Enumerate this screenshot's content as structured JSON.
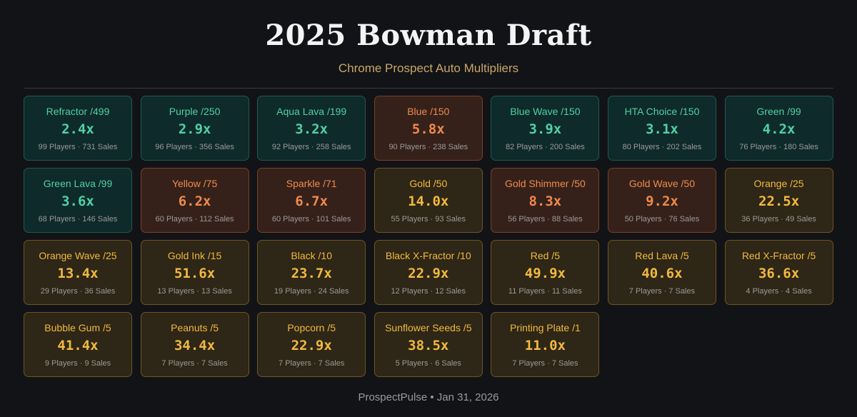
{
  "header": {
    "title": "2025 Bowman Draft",
    "subtitle": "Chrome Prospect Auto Multipliers"
  },
  "cards": [
    {
      "name": "Refractor /499",
      "multiplier": "2.4x",
      "stats": "99 Players · 731 Sales",
      "tier": "teal"
    },
    {
      "name": "Purple /250",
      "multiplier": "2.9x",
      "stats": "96 Players · 356 Sales",
      "tier": "teal"
    },
    {
      "name": "Aqua Lava /199",
      "multiplier": "3.2x",
      "stats": "92 Players · 258 Sales",
      "tier": "teal"
    },
    {
      "name": "Blue /150",
      "multiplier": "5.8x",
      "stats": "90 Players · 238 Sales",
      "tier": "rust"
    },
    {
      "name": "Blue Wave /150",
      "multiplier": "3.9x",
      "stats": "82 Players · 200 Sales",
      "tier": "teal"
    },
    {
      "name": "HTA Choice /150",
      "multiplier": "3.1x",
      "stats": "80 Players · 202 Sales",
      "tier": "teal"
    },
    {
      "name": "Green /99",
      "multiplier": "4.2x",
      "stats": "76 Players · 180 Sales",
      "tier": "teal"
    },
    {
      "name": "Green Lava /99",
      "multiplier": "3.6x",
      "stats": "68 Players · 146 Sales",
      "tier": "teal"
    },
    {
      "name": "Yellow /75",
      "multiplier": "6.2x",
      "stats": "60 Players · 112 Sales",
      "tier": "rust"
    },
    {
      "name": "Sparkle /71",
      "multiplier": "6.7x",
      "stats": "60 Players · 101 Sales",
      "tier": "rust"
    },
    {
      "name": "Gold /50",
      "multiplier": "14.0x",
      "stats": "55 Players · 93 Sales",
      "tier": "gold"
    },
    {
      "name": "Gold Shimmer /50",
      "multiplier": "8.3x",
      "stats": "56 Players · 88 Sales",
      "tier": "rust"
    },
    {
      "name": "Gold Wave /50",
      "multiplier": "9.2x",
      "stats": "50 Players · 76 Sales",
      "tier": "rust"
    },
    {
      "name": "Orange /25",
      "multiplier": "22.5x",
      "stats": "36 Players · 49 Sales",
      "tier": "gold"
    },
    {
      "name": "Orange Wave /25",
      "multiplier": "13.4x",
      "stats": "29 Players · 36 Sales",
      "tier": "gold"
    },
    {
      "name": "Gold Ink /15",
      "multiplier": "51.6x",
      "stats": "13 Players · 13 Sales",
      "tier": "gold"
    },
    {
      "name": "Black /10",
      "multiplier": "23.7x",
      "stats": "19 Players · 24 Sales",
      "tier": "gold"
    },
    {
      "name": "Black X-Fractor /10",
      "multiplier": "22.9x",
      "stats": "12 Players · 12 Sales",
      "tier": "gold"
    },
    {
      "name": "Red /5",
      "multiplier": "49.9x",
      "stats": "11 Players · 11 Sales",
      "tier": "gold"
    },
    {
      "name": "Red Lava /5",
      "multiplier": "40.6x",
      "stats": "7 Players · 7 Sales",
      "tier": "gold"
    },
    {
      "name": "Red X-Fractor /5",
      "multiplier": "36.6x",
      "stats": "4 Players · 4 Sales",
      "tier": "gold"
    },
    {
      "name": "Bubble Gum /5",
      "multiplier": "41.4x",
      "stats": "9 Players · 9 Sales",
      "tier": "gold"
    },
    {
      "name": "Peanuts /5",
      "multiplier": "34.4x",
      "stats": "7 Players · 7 Sales",
      "tier": "gold"
    },
    {
      "name": "Popcorn /5",
      "multiplier": "22.9x",
      "stats": "7 Players · 7 Sales",
      "tier": "gold"
    },
    {
      "name": "Sunflower Seeds /5",
      "multiplier": "38.5x",
      "stats": "5 Players · 6 Sales",
      "tier": "gold"
    },
    {
      "name": "Printing Plate /1",
      "multiplier": "11.0x",
      "stats": "7 Players · 7 Sales",
      "tier": "gold"
    }
  ],
  "footer": {
    "text": "ProspectPulse • Jan 31, 2026"
  },
  "colors": {
    "background": "#121317",
    "teal": "#4fd1a5",
    "rust": "#f08a4b",
    "gold": "#f1b93f",
    "subtitle": "#c9a766"
  }
}
